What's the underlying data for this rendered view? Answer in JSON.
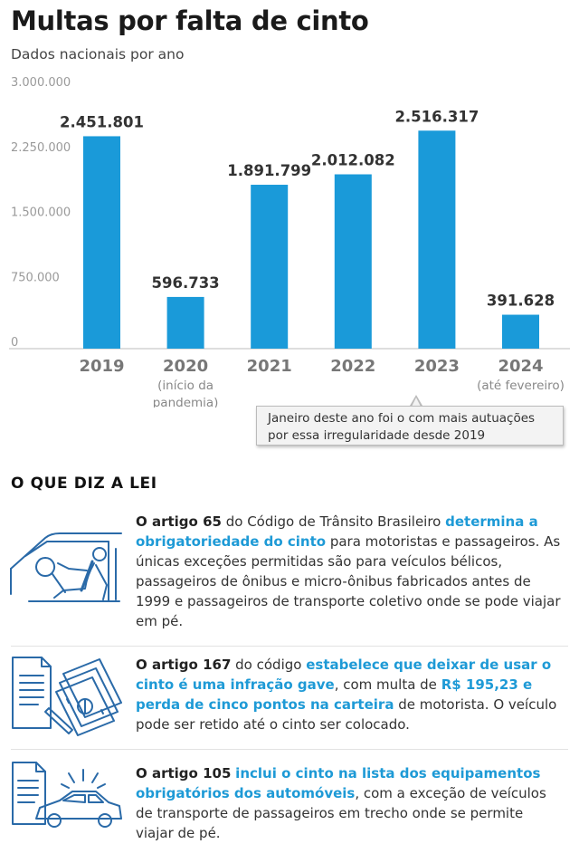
{
  "header": {
    "title": "Multas por falta de cinto",
    "subtitle": "Dados nacionais por ano"
  },
  "chart_data": {
    "type": "bar",
    "title": "Multas por falta de cinto",
    "subtitle": "Dados nacionais por ano",
    "categories": [
      "2019",
      "2020",
      "2021",
      "2022",
      "2023",
      "2024"
    ],
    "category_notes": [
      "",
      "(início da pandemia)",
      "",
      "",
      "",
      "(até fevereiro)"
    ],
    "values": [
      2451801,
      596733,
      1891799,
      2012082,
      2516317,
      391628
    ],
    "value_labels": [
      "2.451.801",
      "596.733",
      "1.891.799",
      "2.012.082",
      "2.516.317",
      "391.628"
    ],
    "ylim": [
      0,
      3000000
    ],
    "yticks": [
      0,
      750000,
      1500000,
      2250000,
      3000000
    ],
    "ytick_labels": [
      "0",
      "750.000",
      "1.500.000",
      "2.250.000",
      "3.000.000"
    ],
    "bar_color": "#1a9ad9",
    "grid": false,
    "annotation": "Janeiro deste ano foi o com mais autuações por essa irregularidade desde 2019"
  },
  "callout": {
    "line1": "Janeiro deste ano foi o com mais autuações",
    "line2": "por essa irregularidade desde 2019"
  },
  "section": {
    "heading": "O QUE DIZ A LEI"
  },
  "laws": [
    {
      "icon": "car-seatbelt-icon",
      "parts": [
        {
          "t": "O artigo 65",
          "s": "b"
        },
        {
          "t": " do Código de Trânsito Brasileiro ",
          "s": ""
        },
        {
          "t": "determina a obrigatoriedade do cinto",
          "s": "hl"
        },
        {
          "t": " para motoristas e passageiros. As únicas exceções permitidas são para veículos bélicos, passageiros de ônibus e micro-ônibus fabricados antes de 1999 e passageiros de transporte coletivo onde se pode viajar em pé.",
          "s": ""
        }
      ]
    },
    {
      "icon": "document-money-icon",
      "parts": [
        {
          "t": "O artigo 167",
          "s": "b"
        },
        {
          "t": " do código ",
          "s": ""
        },
        {
          "t": "estabelece que deixar de usar o cinto é uma infração gave",
          "s": "hl"
        },
        {
          "t": ", com multa de ",
          "s": ""
        },
        {
          "t": "R$ 195,23 e perda de cinco pontos na carteira",
          "s": "hl"
        },
        {
          "t": " de motorista. O veículo pode ser retido até o cinto ser colocado.",
          "s": ""
        }
      ]
    },
    {
      "icon": "document-car-icon",
      "parts": [
        {
          "t": "O artigo 105",
          "s": "b"
        },
        {
          "t": " ",
          "s": ""
        },
        {
          "t": "inclui o cinto na lista dos equipamentos obrigatórios dos automóveis",
          "s": "hl"
        },
        {
          "t": ", com a exceção de veículos de transporte de passageiros em trecho onde se permite viajar de pé.",
          "s": ""
        }
      ]
    }
  ],
  "colors": {
    "accent": "#1a9ad9",
    "icon_stroke": "#2a6aa8"
  }
}
